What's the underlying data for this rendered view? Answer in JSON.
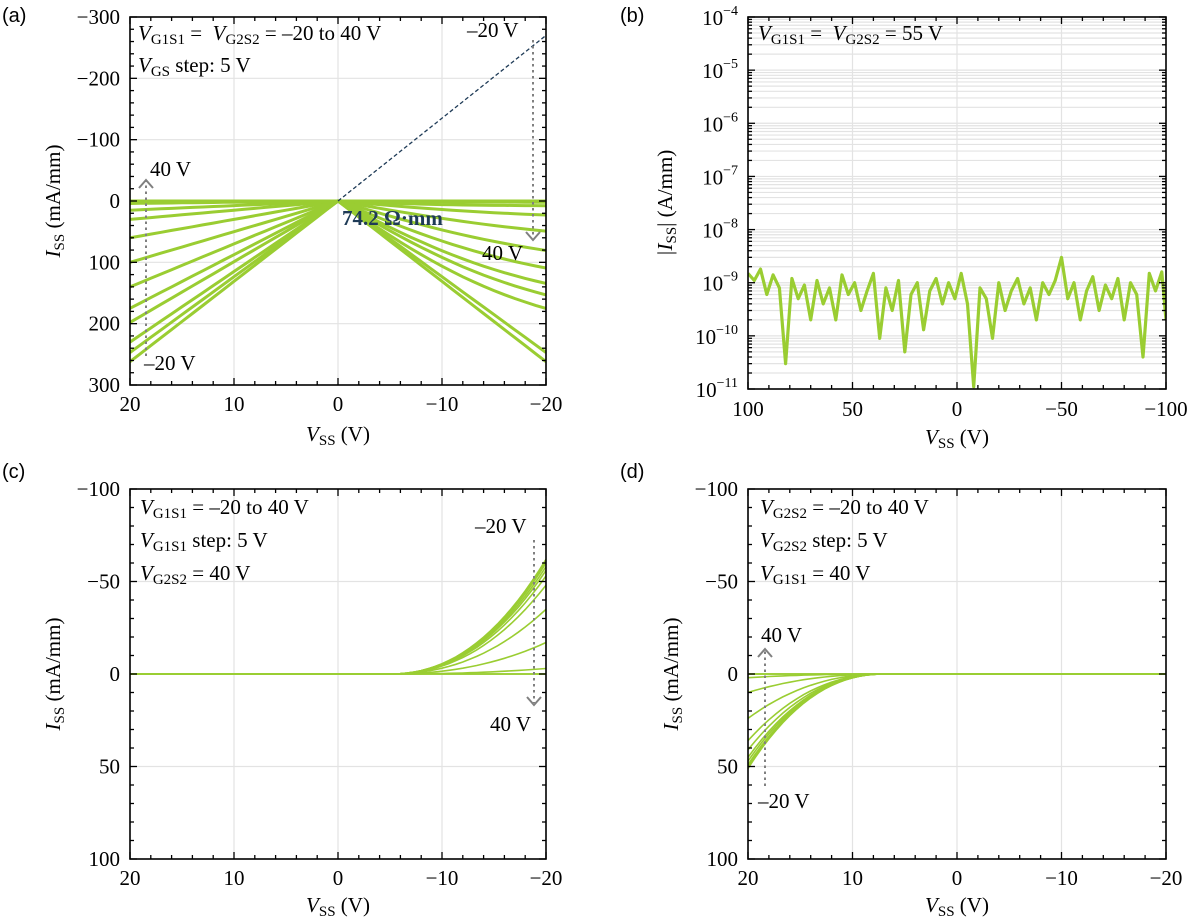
{
  "chart_data": [
    {
      "id": "a",
      "type": "line",
      "panel_label": "(a)",
      "xlabel_main": "V",
      "xlabel_sub": "SS",
      "xlabel_unit": " (V)",
      "ylabel_main": "I",
      "ylabel_sub": "SS",
      "ylabel_unit": " (mA/mm)",
      "xlim": [
        20,
        -20
      ],
      "ylim": [
        300,
        -300
      ],
      "xticks": [
        20,
        10,
        0,
        -10,
        -20
      ],
      "xtick_labels": [
        "20",
        "10",
        "0",
        "−10",
        "−20"
      ],
      "yticks": [
        -300,
        -200,
        -100,
        0,
        100,
        200,
        300
      ],
      "ytick_labels": [
        "−300",
        "−200",
        "−100",
        "0",
        "100",
        "200",
        "300"
      ],
      "grid": true,
      "curve_color": "#9acd32",
      "fit_line_color": "#1f3b57",
      "fit_line": {
        "x": [
          0,
          -20
        ],
        "y": [
          0,
          -270
        ]
      },
      "series": [
        {
          "vg": -20,
          "x": [
            20,
            0,
            -20
          ],
          "y": [
            262,
            0,
            -262
          ]
        },
        {
          "vg": -15,
          "x": [
            20,
            0,
            -20
          ],
          "y": [
            247,
            0,
            -247
          ]
        },
        {
          "vg": -10,
          "x": [
            20,
            0,
            -20
          ],
          "y": [
            230,
            0,
            -230
          ]
        },
        {
          "vg": -5,
          "x": [
            20,
            0,
            -20
          ],
          "y": [
            198,
            0,
            -205
          ]
        },
        {
          "vg": 0,
          "x": [
            20,
            0,
            -20
          ],
          "y": [
            175,
            0,
            -178
          ]
        },
        {
          "vg": 5,
          "x": [
            20,
            0,
            -20
          ],
          "y": [
            140,
            0,
            -148
          ]
        },
        {
          "vg": 10,
          "x": [
            20,
            0,
            -20
          ],
          "y": [
            100,
            0,
            -115
          ]
        },
        {
          "vg": 15,
          "x": [
            20,
            0,
            -20
          ],
          "y": [
            60,
            0,
            -72
          ]
        },
        {
          "vg": 20,
          "x": [
            20,
            0,
            -20
          ],
          "y": [
            30,
            0,
            -30
          ]
        },
        {
          "vg": 25,
          "x": [
            20,
            0,
            -20
          ],
          "y": [
            15,
            0,
            -8
          ]
        },
        {
          "vg": 30,
          "x": [
            20,
            0,
            -20
          ],
          "y": [
            4,
            0,
            -2
          ]
        },
        {
          "vg": 35,
          "x": [
            20,
            0,
            -20
          ],
          "y": [
            1,
            0,
            -1
          ]
        },
        {
          "vg": 40,
          "x": [
            20,
            0,
            -20
          ],
          "y": [
            0,
            0,
            0
          ]
        }
      ],
      "annotations": {
        "line1_v": "V",
        "line1_s1": "G1S1",
        "line1_mid": " =  ",
        "line1_v2": "V",
        "line1_s2": "G2S2",
        "line1_end": " = –20 to 40 V",
        "line2_v": "V",
        "line2_sub": "GS",
        "line2_end": " step: 5 V",
        "top_right_label": "–20 V",
        "bottom_right_label": "40 V",
        "left_top_label": "40 V",
        "left_bottom_label": "–20 V",
        "resistance_label": "74.2 Ω·mm"
      }
    },
    {
      "id": "b",
      "type": "line",
      "panel_label": "(b)",
      "xlabel_main": "V",
      "xlabel_sub": "SS",
      "xlabel_unit": " (V)",
      "ylabel_pre": "|I",
      "ylabel_sub": "SS",
      "ylabel_unit": "| (A/mm)",
      "xlim": [
        100,
        -100
      ],
      "ylim_log10": [
        -11,
        -4
      ],
      "yscale": "log",
      "xticks": [
        100,
        50,
        0,
        -50,
        -100
      ],
      "xtick_labels": [
        "100",
        "50",
        "0",
        "−50",
        "−100"
      ],
      "yticks_exp": [
        -11,
        -10,
        -9,
        -8,
        -7,
        -6,
        -5,
        -4
      ],
      "ytick_labels_exp": [
        "−11",
        "−10",
        "−9",
        "−8",
        "−7",
        "−6",
        "−5",
        "−4"
      ],
      "ytick_base": "10",
      "grid": true,
      "curve_color": "#9acd32",
      "series": [
        {
          "x": [
            100,
            97,
            94,
            91,
            88,
            85,
            82,
            79,
            76,
            73,
            70,
            67,
            64,
            61,
            58,
            55,
            52,
            49,
            46,
            43,
            40,
            37,
            34,
            31,
            28,
            25,
            22,
            19,
            16,
            13,
            10,
            7,
            4,
            1,
            -2,
            -5,
            -8,
            -11,
            -14,
            -17,
            -20,
            -23,
            -26,
            -29,
            -32,
            -35,
            -38,
            -41,
            -44,
            -47,
            -50,
            -53,
            -56,
            -59,
            -62,
            -65,
            -68,
            -71,
            -74,
            -77,
            -80,
            -83,
            -86,
            -89,
            -92,
            -95,
            -98,
            -100
          ],
          "y": [
            1.5e-09,
            1.1e-09,
            1.8e-09,
            6e-10,
            1.4e-09,
            8e-10,
            3e-11,
            1.2e-09,
            5e-10,
            9e-10,
            2e-10,
            1.1e-09,
            4e-10,
            8e-10,
            2e-10,
            1.4e-09,
            6e-10,
            1e-09,
            3e-10,
            7e-10,
            1.5e-09,
            9e-11,
            8e-10,
            3e-10,
            1.1e-09,
            5e-11,
            6e-10,
            1e-09,
            1.3e-10,
            7e-10,
            1.2e-09,
            4e-10,
            1e-09,
            5e-10,
            1.5e-09,
            4e-10,
            1.1e-11,
            8e-10,
            5e-10,
            9e-11,
            1e-09,
            3e-10,
            7e-10,
            1.2e-09,
            4e-10,
            8e-10,
            2e-10,
            1e-09,
            6e-10,
            1.1e-09,
            3e-09,
            5e-10,
            1e-09,
            2e-10,
            7e-10,
            1.3e-09,
            3e-10,
            9e-10,
            5e-10,
            1.2e-09,
            2e-10,
            1e-09,
            6e-10,
            4e-11,
            1.5e-09,
            7e-10,
            1.6e-09,
            2e-10
          ]
        }
      ],
      "annotations": {
        "line1_v": "V",
        "line1_s1": "G1S1",
        "line1_mid": " =  ",
        "line1_v2": "V",
        "line1_s2": "G2S2",
        "line1_end": " = 55 V"
      }
    },
    {
      "id": "c",
      "type": "line",
      "panel_label": "(c)",
      "xlabel_main": "V",
      "xlabel_sub": "SS",
      "xlabel_unit": " (V)",
      "ylabel_main": "I",
      "ylabel_sub": "SS",
      "ylabel_unit": " (mA/mm)",
      "xlim": [
        20,
        -20
      ],
      "ylim": [
        100,
        -100
      ],
      "xticks": [
        20,
        10,
        0,
        -10,
        -20
      ],
      "xtick_labels": [
        "20",
        "10",
        "0",
        "−10",
        "−20"
      ],
      "yticks": [
        -100,
        -50,
        0,
        50,
        100
      ],
      "ytick_labels": [
        "−100",
        "−50",
        "0",
        "50",
        "100"
      ],
      "grid": true,
      "curve_color": "#9acd32",
      "onset_x": -5,
      "end_x": -20,
      "end_values": [
        -62,
        -61,
        -60,
        -58,
        -56,
        -53,
        -48,
        -35,
        -17,
        -3,
        0,
        0,
        0
      ],
      "annotations": {
        "line1_v": "V",
        "line1_sub": "G1S1",
        "line1_end": " = –20 to 40 V",
        "line2_v": "V",
        "line2_sub": "G1S1",
        "line2_end": " step: 5 V",
        "line3_v": "V",
        "line3_sub": "G2S2",
        "line3_end": " = 40 V",
        "top_right_label": "–20 V",
        "bottom_right_label": "40 V"
      }
    },
    {
      "id": "d",
      "type": "line",
      "panel_label": "(d)",
      "xlabel_main": "V",
      "xlabel_sub": "SS",
      "xlabel_unit": " (V)",
      "ylabel_main": "I",
      "ylabel_sub": "SS",
      "ylabel_unit": " (mA/mm)",
      "xlim": [
        20,
        -20
      ],
      "ylim": [
        100,
        -100
      ],
      "xticks": [
        20,
        10,
        0,
        -10,
        -20
      ],
      "xtick_labels": [
        "20",
        "10",
        "0",
        "−10",
        "−20"
      ],
      "yticks": [
        -100,
        -50,
        0,
        50,
        100
      ],
      "ytick_labels": [
        "−100",
        "−50",
        "0",
        "50",
        "100"
      ],
      "grid": true,
      "curve_color": "#9acd32",
      "onset_x": 7,
      "end_x": 20,
      "end_values": [
        51,
        50,
        49,
        47,
        45,
        41,
        36,
        24,
        10,
        2,
        0,
        0,
        0
      ],
      "annotations": {
        "line1_v": "V",
        "line1_sub": "G2S2",
        "line1_end": " = –20 to 40 V",
        "line2_v": "V",
        "line2_sub": "G2S2",
        "line2_end": " step: 5 V",
        "line3_v": "V",
        "line3_sub": "G1S1",
        "line3_end": " = 40 V",
        "left_top_label": "40 V",
        "left_bottom_label": "–20 V"
      }
    }
  ]
}
